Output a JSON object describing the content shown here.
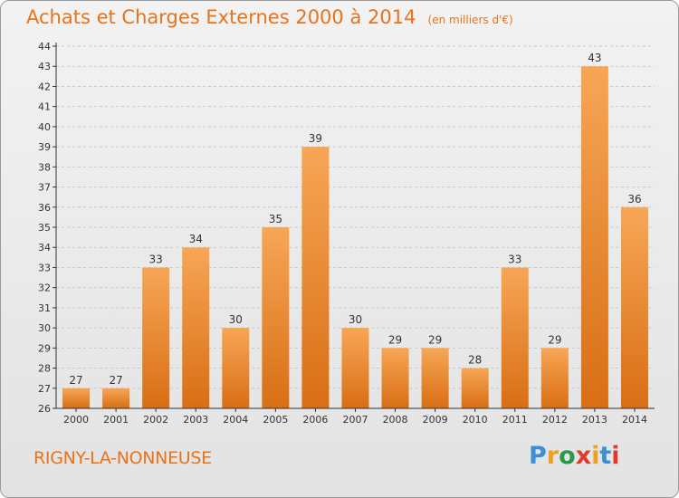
{
  "title": "Achats et Charges Externes 2000 à 2014",
  "subtitle": "(en milliers d'€)",
  "city": "RIGNY-LA-NONNEUSE",
  "logo": {
    "letters": [
      {
        "char": "P",
        "color": "#3a8fd6"
      },
      {
        "char": "r",
        "color": "#f0a020"
      },
      {
        "char": "o",
        "color": "#2a9a48"
      },
      {
        "char": "x",
        "color": "#e03a2a"
      },
      {
        "char": "i",
        "color": "#f0a020"
      },
      {
        "char": "t",
        "color": "#3a8fd6"
      },
      {
        "char": "i",
        "color": "#e03a2a"
      }
    ]
  },
  "colors": {
    "accent": "#e8731a",
    "bar_top": "#f7a656",
    "bar_bottom": "#d96e14",
    "grid": "#c8c8c8",
    "axis": "#333333"
  },
  "chart_data": {
    "type": "bar",
    "categories": [
      "2000",
      "2001",
      "2002",
      "2003",
      "2004",
      "2005",
      "2006",
      "2007",
      "2008",
      "2009",
      "2010",
      "2011",
      "2012",
      "2013",
      "2014"
    ],
    "values": [
      27,
      27,
      33,
      34,
      30,
      35,
      39,
      30,
      29,
      29,
      28,
      33,
      29,
      43,
      36
    ],
    "ylim": [
      26,
      44
    ],
    "yticks": [
      26,
      27,
      28,
      29,
      30,
      31,
      32,
      33,
      34,
      35,
      36,
      37,
      38,
      39,
      40,
      41,
      42,
      43,
      44
    ],
    "grid": "dashed horizontal",
    "data_labels": true
  }
}
